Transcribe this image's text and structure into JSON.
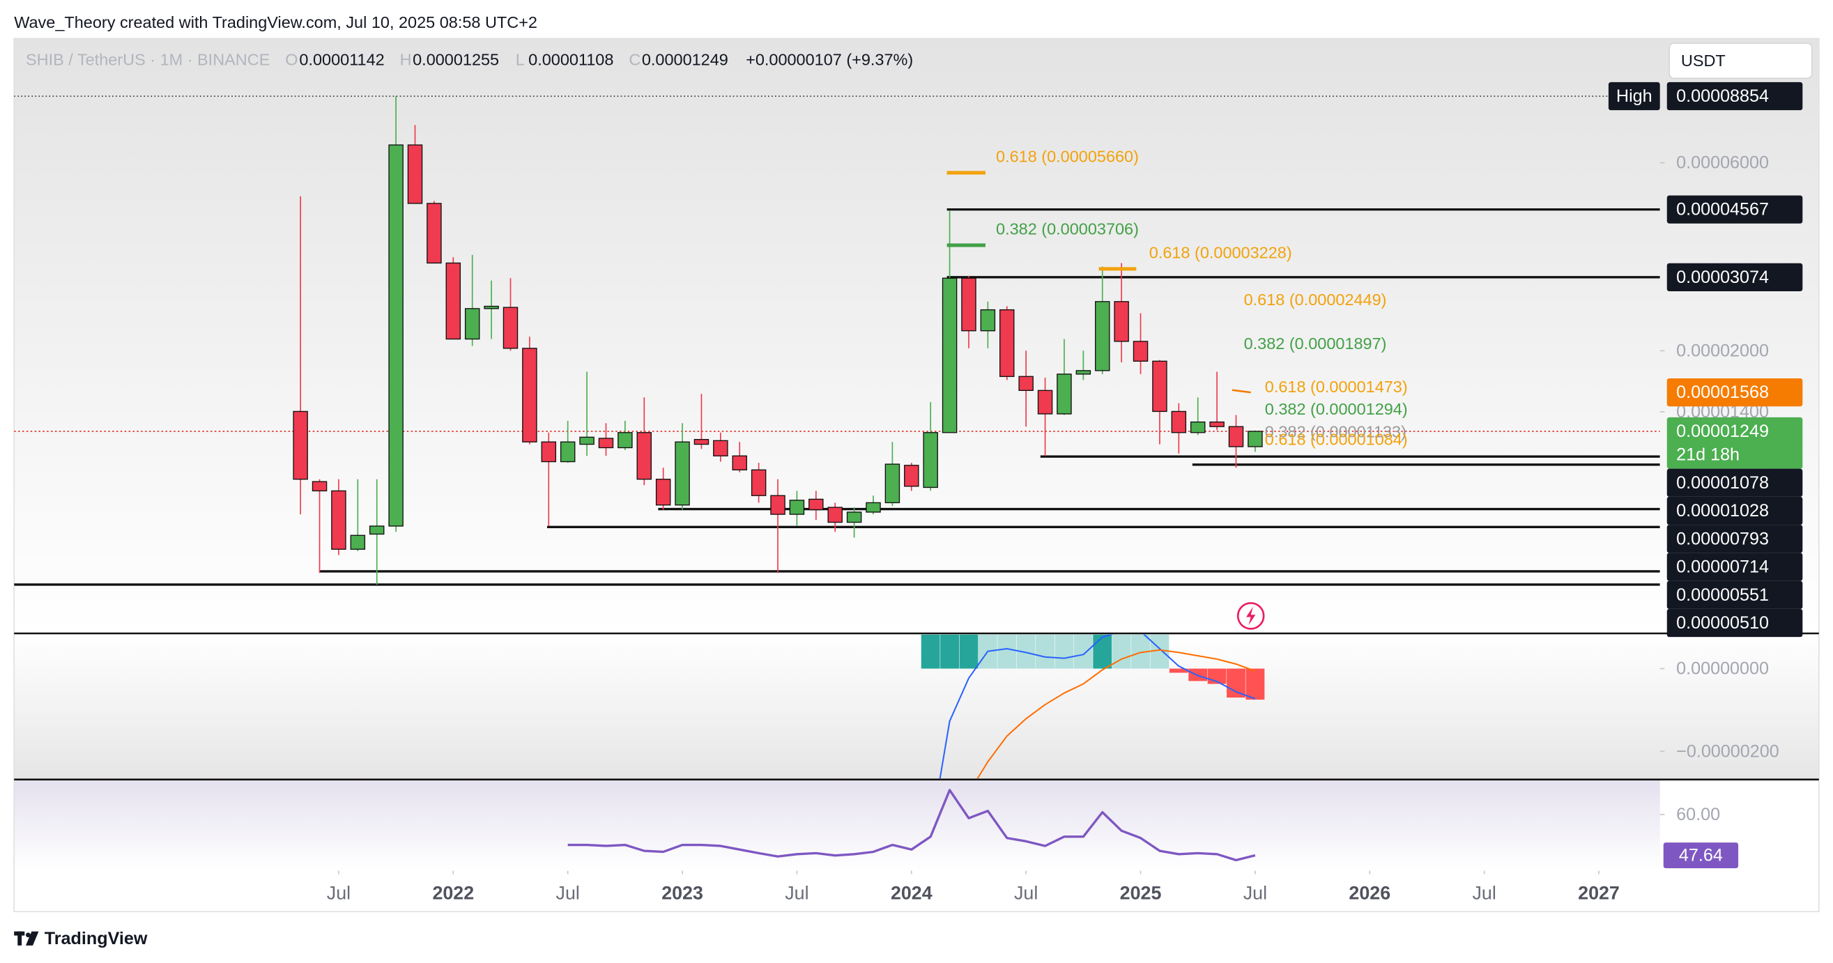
{
  "header": {
    "attribution": "Wave_Theory created with TradingView.com, Jul 10, 2025 08:58 UTC+2",
    "symbol": "SHIB / TetherUS · 1M · BINANCE",
    "ohlc_labels": [
      "O",
      "H",
      "L",
      "C"
    ],
    "change": "+0.00000107 (+9.37%)",
    "currency": "USDT"
  },
  "chart_data": [
    {
      "type": "candlestick",
      "log": true,
      "ylim": [
        3.86e-06,
        0.000124
      ],
      "yticks": [
        {
          "value": 6e-05,
          "label": "0.00006000"
        },
        {
          "value": 2e-05,
          "label": "0.00002000"
        },
        {
          "value": 1.4e-05,
          "label": "0.00001400"
        }
      ],
      "xlim": [
        -15,
        71.2
      ],
      "xticks": [
        {
          "value": 2,
          "label": "Jul"
        },
        {
          "value": 8,
          "label": "2022"
        },
        {
          "value": 14,
          "label": "Jul"
        },
        {
          "value": 20,
          "label": "2023"
        },
        {
          "value": 26,
          "label": "Jul"
        },
        {
          "value": 32,
          "label": "2024"
        },
        {
          "value": 38,
          "label": "Jul"
        },
        {
          "value": 44,
          "label": "2025"
        },
        {
          "value": 50,
          "label": "Jul"
        },
        {
          "value": 56,
          "label": "2026"
        },
        {
          "value": 62,
          "label": "Jul"
        },
        {
          "value": 68,
          "label": "2027"
        }
      ],
      "open": [
        1.403e-05,
        9.31e-06,
        8.82e-06,
        6.27e-06,
        6.85e-06,
        7.18e-06,
        6.659e-05,
        4.732e-05,
        3.34e-05,
        2.142e-05,
        2.559e-05,
        2.577e-05,
        2.029e-05,
        1.174e-05,
        1.046e-05,
        1.158e-05,
        1.199e-05,
        1.135e-05,
        1.24e-05,
        9.44e-06,
        8.12e-06,
        1.191e-05,
        1.183e-05,
        1.082e-05,
        9.97e-06,
        8.58e-06,
        7.69e-06,
        8.4e-06,
        8.01e-06,
        7.34e-06,
        7.79e-06,
        8.23e-06,
        1.024e-05,
        9e-06,
        1.24e-05,
        3.057e-05,
        2.248e-05,
        2.541e-05,
        1.721e-05,
        1.586e-05,
        1.383e-05,
        1.745e-05,
        1.781e-05,
        2.666e-05,
        2.113e-05,
        1.882e-05,
        1.403e-05,
        1.24e-05,
        1.319e-05,
        1.284e-05,
        1.142e-05
      ],
      "high": [
        4.931e-05,
        9.44e-06,
        9.44e-06,
        9.44e-06,
        9.44e-06,
        8.854e-05,
        7.48e-05,
        4.798e-05,
        3.456e-05,
        3.504e-05,
        3.015e-05,
        3.057e-05,
        2.172e-05,
        1.24e-05,
        1.328e-05,
        1.769e-05,
        1.31e-05,
        1.328e-05,
        1.523e-05,
        1.01e-05,
        1.31e-05,
        1.554e-05,
        1.24e-05,
        1.174e-05,
        1.039e-05,
        9.44e-06,
        8.82e-06,
        8.82e-06,
        8.23e-06,
        8.01e-06,
        8.58e-06,
        1.174e-05,
        1.039e-05,
        1.482e-05,
        4.543e-05,
        3.099e-05,
        2.666e-05,
        2.594e-05,
        2.001e-05,
        1.709e-05,
        2.142e-05,
        2.001e-05,
        3.272e-05,
        3.34e-05,
        2.49e-05,
        1.895e-05,
        1.472e-05,
        1.523e-05,
        1.769e-05,
        1.374e-05,
        1.255e-05
      ],
      "low": [
        7.69e-06,
        5.46e-06,
        6.06e-06,
        6.2e-06,
        5.1e-06,
        6.94e-06,
        4.732e-05,
        3.34e-05,
        2.142e-05,
        2.057e-05,
        2.142e-05,
        2.001e-05,
        1.158e-05,
        7.18e-06,
        1.039e-05,
        1.082e-05,
        1.082e-05,
        1.119e-05,
        9.12e-06,
        7.9e-06,
        7.9e-06,
        1.127e-05,
        1.046e-05,
        9.83e-06,
        8.23e-06,
        5.46e-06,
        7.18e-06,
        7.44e-06,
        6.94e-06,
        6.71e-06,
        7.69e-06,
        8.07e-06,
        8.82e-06,
        8.82e-06,
        1.24e-05,
        2.029e-05,
        2.029e-05,
        1.686e-05,
        1.284e-05,
        1.082e-05,
        1.374e-05,
        1.686e-05,
        1.745e-05,
        1.869e-05,
        1.745e-05,
        1.158e-05,
        1.097e-05,
        1.222e-05,
        1.258e-05,
        1.01e-05,
        1.108e-05
      ],
      "close": [
        9.44e-06,
        8.82e-06,
        6.27e-06,
        6.8e-06,
        7.18e-06,
        6.659e-05,
        4.732e-05,
        3.34e-05,
        2.142e-05,
        2.559e-05,
        2.594e-05,
        2.029e-05,
        1.174e-05,
        1.046e-05,
        1.174e-05,
        1.207e-05,
        1.135e-05,
        1.24e-05,
        9.44e-06,
        8.12e-06,
        1.174e-05,
        1.158e-05,
        1.082e-05,
        9.97e-06,
        8.58e-06,
        7.69e-06,
        8.35e-06,
        7.9e-06,
        7.34e-06,
        7.79e-06,
        8.23e-06,
        1.031e-05,
        9.06e-06,
        1.24e-05,
        3.057e-05,
        2.248e-05,
        2.541e-05,
        1.721e-05,
        1.586e-05,
        1.383e-05,
        1.745e-05,
        1.781e-05,
        2.666e-05,
        2.113e-05,
        1.882e-05,
        1.403e-05,
        1.24e-05,
        1.319e-05,
        1.284e-05,
        1.142e-05,
        1.249e-05
      ],
      "up_color": "#4caf50",
      "down_color": "#ef3a4f",
      "high_tag": "High",
      "countdown": "21d 18h",
      "indicator_value": 1.568e-05,
      "indicator_color": "#f57c00",
      "price_line_color": "#e53935",
      "levels": [
        4.567e-05,
        3.074e-05,
        1.078e-05,
        1.028e-05,
        7.93e-06,
        7.14e-06,
        5.51e-06,
        {
          "value": 5.1e-06,
          "label": "0.00000510"
        }
      ],
      "annotations": [
        {
          "text": "0.618 (0.00005660)",
          "value": 5.66e-05,
          "color": "#f2a20c"
        },
        {
          "text": "0.382 (0.00003706)",
          "value": 3.706e-05,
          "color": "#43a047"
        },
        {
          "text": "0.618 (0.00003228)",
          "value": 3.228e-05,
          "color": "#f2a20c"
        },
        {
          "text": "0.618 (0.00002449)",
          "value": 2.449e-05,
          "color": "#f2a20c"
        },
        {
          "text": "0.382 (0.00001897)",
          "value": 1.897e-05,
          "color": "#43a047"
        },
        {
          "text": "0.618 (0.00001473)",
          "value": 1.473e-05,
          "color": "#f2a20c"
        },
        {
          "text": "0.382 (0.00001294)",
          "value": 1.294e-05,
          "color": "#43a047"
        },
        {
          "text": "0.382 (0.00001133)",
          "value": 1.133e-05,
          "color": "#9a9a9a"
        },
        {
          "text": "0.618 (0.00001084)",
          "value": 1.084e-05,
          "color": "#f2a20c"
        }
      ]
    },
    {
      "type": "macd",
      "ylim": [
        -2.68e-06,
        8.5e-07
      ],
      "yticks": [
        {
          "value": 0,
          "label": "0.00000000"
        },
        {
          "value": -2e-06,
          "label": "−0.00000200"
        }
      ],
      "histogram": {
        "colors": [
          "#26a69a",
          "#b2dfdb",
          "#ffcdd2",
          "#ff5252"
        ],
        "values": [
          null,
          null,
          null,
          null,
          null,
          null,
          null,
          null,
          null,
          null,
          null,
          null,
          null,
          null,
          null,
          null,
          null,
          null,
          null,
          null,
          null,
          null,
          null,
          null,
          null,
          null,
          null,
          null,
          null,
          null,
          null,
          null,
          null,
          2.5e-06,
          3.2e-06,
          3.4e-06,
          3.3e-06,
          2.9e-06,
          2.3e-06,
          1.7e-06,
          1.4e-06,
          1.2e-06,
          1.3e-06,
          1.1e-06,
          1e-06,
          9e-07,
          -1e-07,
          -3e-07,
          -3.7e-07,
          -7e-07,
          -7.5e-07
        ]
      },
      "series": [
        {
          "color": "#2962ff",
          "values": [
            null,
            null,
            null,
            null,
            null,
            null,
            null,
            null,
            null,
            null,
            null,
            null,
            null,
            null,
            null,
            null,
            null,
            null,
            null,
            null,
            null,
            null,
            null,
            null,
            null,
            null,
            null,
            null,
            null,
            null,
            null,
            null,
            null,
            -4e-06,
            -1.27e-06,
            -2.3e-07,
            4.2e-07,
            4.8e-07,
            3.9e-07,
            2.8e-07,
            2.5e-07,
            3.4e-07,
            7.6e-07,
            9e-07,
            9e-07,
            4.8e-07,
            6e-08,
            -1.7e-07,
            -3.1e-07,
            -5.6e-07,
            -7.3e-07
          ]
        },
        {
          "color": "#ff6d00",
          "values": [
            null,
            null,
            null,
            null,
            null,
            null,
            null,
            null,
            null,
            null,
            null,
            null,
            null,
            null,
            null,
            null,
            null,
            null,
            null,
            null,
            null,
            null,
            null,
            null,
            null,
            null,
            null,
            null,
            null,
            null,
            null,
            null,
            null,
            null,
            null,
            -3e-06,
            -2.25e-06,
            -1.63e-06,
            -1.21e-06,
            -8.7e-07,
            -5.9e-07,
            -3.7e-07,
            -3e-08,
            2.3e-07,
            3.9e-07,
            4.5e-07,
            3.9e-07,
            3.1e-07,
            2.3e-07,
            1.1e-07,
            -6e-08
          ]
        }
      ]
    },
    {
      "type": "rsi",
      "ylim": [
        43,
        70.25
      ],
      "yticks": [
        {
          "value": 60,
          "label": "60.00"
        }
      ],
      "color": "#7e57c2",
      "values": [
        null,
        null,
        null,
        null,
        null,
        null,
        null,
        null,
        null,
        null,
        null,
        null,
        null,
        null,
        50.8,
        50.8,
        50.5,
        50.8,
        49.0,
        48.7,
        50.8,
        50.8,
        50.5,
        49.4,
        48.3,
        47.3,
        48.0,
        48.3,
        47.6,
        48.0,
        48.7,
        50.8,
        49.4,
        53.3,
        67.4,
        58.9,
        61.1,
        52.9,
        51.9,
        50.5,
        53.3,
        53.3,
        60.7,
        55.1,
        52.9,
        49.0,
        48.0,
        48.3,
        48.0,
        46.2,
        47.64
      ]
    }
  ],
  "footer": {
    "brand": "TradingView"
  }
}
